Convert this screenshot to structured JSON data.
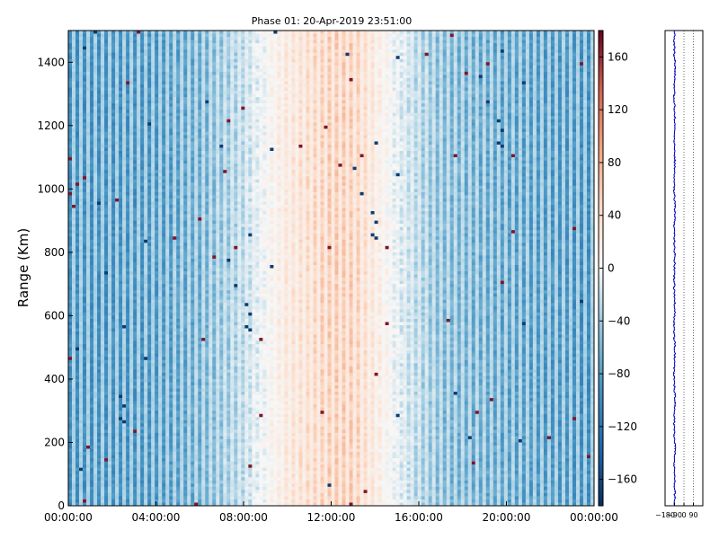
{
  "title": "Phase 01: 20-Apr-2019 23:51:00",
  "colors": {
    "cold": "#2166ac",
    "mid": "#f7f7f7",
    "hot": "#b2182b"
  },
  "chart_data": [
    {
      "type": "heatmap",
      "title": "Phase 01: 20-Apr-2019 23:51:00",
      "xlabel": "",
      "ylabel": "Range (Km)",
      "x_range": [
        "00:00:00",
        "24:00:00"
      ],
      "ylim": [
        0,
        1500
      ],
      "x_ticks": [
        "00:00:00",
        "04:00:00",
        "08:00:00",
        "12:00:00",
        "16:00:00",
        "20:00:00",
        "00:00:00"
      ],
      "y_ticks": [
        0,
        200,
        400,
        600,
        800,
        1000,
        1200,
        1400
      ],
      "colorbar": {
        "colormap": "RdBu_r",
        "range": [
          -180,
          180
        ],
        "ticks": [
          -160,
          -120,
          -80,
          -40,
          0,
          40,
          80,
          120,
          160
        ]
      },
      "profile_by_hour": [
        {
          "hour": 0,
          "phase": -95
        },
        {
          "hour": 2,
          "phase": -95
        },
        {
          "hour": 4,
          "phase": -90
        },
        {
          "hour": 6,
          "phase": -70
        },
        {
          "hour": 8,
          "phase": -30
        },
        {
          "hour": 10,
          "phase": 30
        },
        {
          "hour": 12,
          "phase": 60
        },
        {
          "hour": 13,
          "phase": 60
        },
        {
          "hour": 15,
          "phase": -10
        },
        {
          "hour": 17,
          "phase": -60
        },
        {
          "hour": 20,
          "phase": -80
        },
        {
          "hour": 24,
          "phase": -95
        }
      ]
    },
    {
      "type": "line",
      "x_ticks": [
        "−180",
        "−90",
        "0",
        "90"
      ],
      "xlim": [
        -180,
        180
      ],
      "ylim": [
        0,
        1500
      ],
      "grid": "vertical dotted",
      "series_color": "#0000cc",
      "approx_phase": -90
    }
  ]
}
